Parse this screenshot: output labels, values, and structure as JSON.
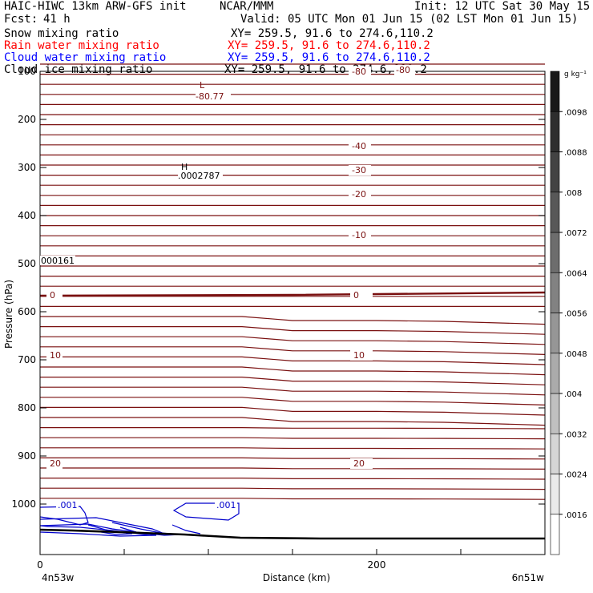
{
  "header": {
    "model": "HAIC-HIWC 13km ARW-GFS init",
    "org": "NCAR/MMM",
    "init": "Init: 12 UTC Sat 30 May 15",
    "fcst_label": "Fcst:",
    "fcst_value": "41 h",
    "valid": "Valid: 05 UTC Mon 01 Jun 15 (02 LST Mon 01 Jun 15)"
  },
  "fields": [
    {
      "name": "Snow mixing ratio",
      "xy": "XY= 259.5, 91.6 to 274.6,110.2",
      "color": "#000000"
    },
    {
      "name": "Rain water mixing ratio",
      "xy": "XY= 259.5, 91.6 to 274.6,110.2",
      "color": "#ff0000"
    },
    {
      "name": "Cloud water mixing ratio",
      "xy": "XY= 259.5, 91.6 to 274.6,110.2",
      "color": "#0000ff"
    },
    {
      "name": "Cloud ice mixing ratio",
      "xy": "XY= 259.5, 91.6 to 274.6,110.2",
      "color": "#000000"
    }
  ],
  "chart_data": {
    "type": "contour",
    "xlabel": "Distance (km)",
    "ylabel": "Pressure (hPa)",
    "x_range": [
      0,
      300
    ],
    "x_ticks": [
      0,
      200
    ],
    "x_end_labels": [
      "4n53w",
      "6n51w"
    ],
    "y_range": [
      50,
      1045
    ],
    "y_ticks": [
      100,
      200,
      300,
      400,
      500,
      600,
      700,
      800,
      900,
      1000
    ],
    "temperature_isotherms": [
      {
        "label": "-80",
        "pressure": 100
      },
      {
        "label": "-40",
        "pressure": 255
      },
      {
        "label": "-30",
        "pressure": 305
      },
      {
        "label": "-20",
        "pressure": 355
      },
      {
        "label": "-10",
        "pressure": 440
      },
      {
        "label": "0",
        "pressure": 565
      },
      {
        "label": "10",
        "pressure": 690
      },
      {
        "label": "20",
        "pressure": 915
      }
    ],
    "extrema": [
      {
        "type": "L",
        "value": "-80.77"
      },
      {
        "type": "H",
        "value": ".0002787"
      },
      {
        "type": "value",
        "value": "000161"
      }
    ],
    "cloud_water_labels": [
      ".001",
      ".001"
    ],
    "colorbar": {
      "unit": "g kg⁻¹",
      "levels": [
        ".0016",
        ".0024",
        ".0032",
        ".004",
        ".0048",
        ".0056",
        ".0064",
        ".0072",
        ".008",
        ".0088",
        ".0098"
      ]
    },
    "colors": {
      "isotherm": "#7a1010",
      "cloud_water": "#0000cc",
      "terrain": "#000000"
    }
  }
}
